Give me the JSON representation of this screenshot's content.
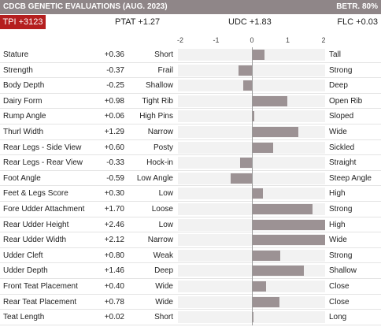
{
  "header": {
    "title": "CDCB GENETIC EVALUATIONS (AUG. 2023)",
    "reliability": "BETR. 80%"
  },
  "summary": {
    "tpi": "TPI +3123",
    "ptat": "PTAT +1.27",
    "udc": "UDC +1.83",
    "flc": "FLC +0.03"
  },
  "colors": {
    "header_bg": "#8f8688",
    "tpi_bg": "#b51f1f",
    "bar": "#9c9294"
  },
  "chart_data": {
    "type": "bar",
    "orientation": "horizontal",
    "xlim": [
      -2,
      2
    ],
    "ticks": [
      "-2",
      "-1",
      "0",
      "1",
      "2"
    ],
    "categories": [
      "Stature",
      "Strength",
      "Body Depth",
      "Dairy Form",
      "Rump Angle",
      "Thurl Width",
      "Rear Legs - Side View",
      "Rear Legs - Rear View",
      "Foot Angle",
      "Feet & Legs Score",
      "Fore Udder Attachment",
      "Rear Udder Height",
      "Rear Udder Width",
      "Udder Cleft",
      "Udder Depth",
      "Front Teat Placement",
      "Rear Teat Placement",
      "Teat Length"
    ],
    "values": [
      0.36,
      -0.37,
      -0.25,
      0.98,
      0.06,
      1.29,
      0.6,
      -0.33,
      -0.59,
      0.3,
      1.7,
      2.46,
      2.12,
      0.8,
      1.46,
      0.4,
      0.78,
      0.02
    ],
    "value_labels": [
      "+0.36",
      "-0.37",
      "-0.25",
      "+0.98",
      "+0.06",
      "+1.29",
      "+0.60",
      "-0.33",
      "-0.59",
      "+0.30",
      "+1.70",
      "+2.46",
      "+2.12",
      "+0.80",
      "+1.46",
      "+0.40",
      "+0.78",
      "+0.02"
    ],
    "low_labels": [
      "Short",
      "Frail",
      "Shallow",
      "Tight Rib",
      "High Pins",
      "Narrow",
      "Posty",
      "Hock-in",
      "Low Angle",
      "Low",
      "Loose",
      "Low",
      "Narrow",
      "Weak",
      "Deep",
      "Wide",
      "Wide",
      "Short"
    ],
    "high_labels": [
      "Tall",
      "Strong",
      "Deep",
      "Open Rib",
      "Sloped",
      "Wide",
      "Sickled",
      "Straight",
      "Steep Angle",
      "High",
      "Strong",
      "High",
      "Wide",
      "Strong",
      "Shallow",
      "Close",
      "Close",
      "Long"
    ]
  }
}
